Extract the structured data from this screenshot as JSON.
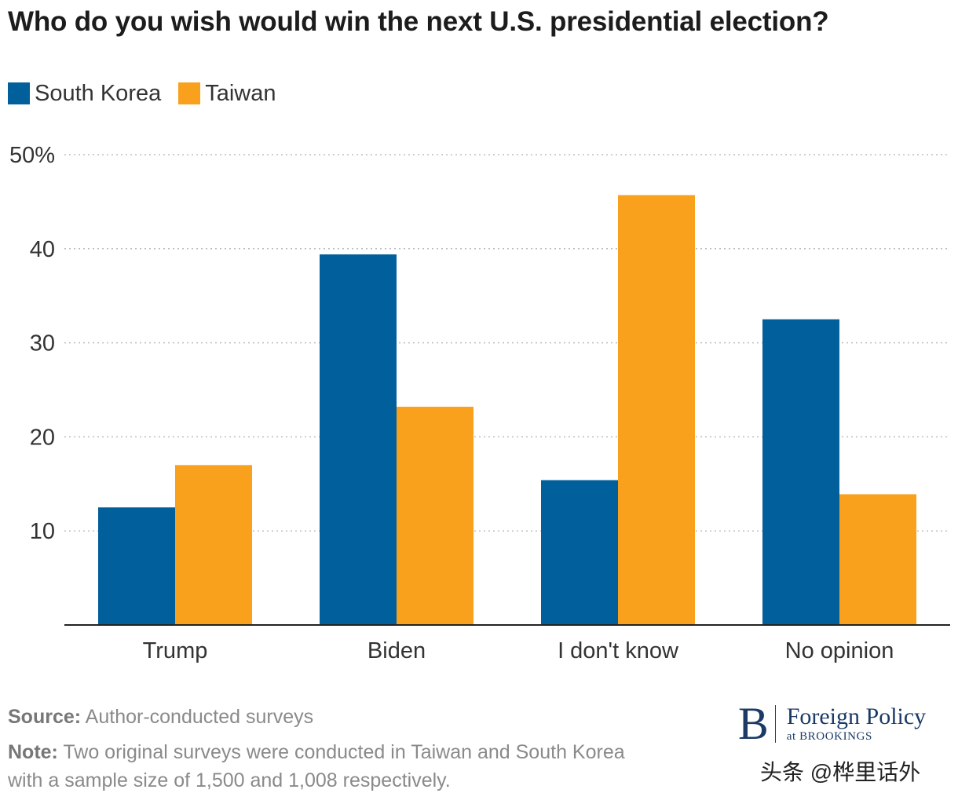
{
  "colors": {
    "south_korea": "#01609c",
    "taiwan": "#f9a01c",
    "grid": "#bdbdbd",
    "axis": "#222222"
  },
  "chart_data": {
    "type": "bar",
    "title": "Who do you wish would win the next U.S. presidential election?",
    "categories": [
      "Trump",
      "Biden",
      "I don't know",
      "No opinion"
    ],
    "series": [
      {
        "name": "South Korea",
        "values": [
          12.5,
          39.4,
          15.4,
          32.5
        ]
      },
      {
        "name": "Taiwan",
        "values": [
          17.0,
          23.2,
          45.7,
          13.9
        ]
      }
    ],
    "ylim": [
      0,
      50
    ],
    "yticks": [
      10,
      20,
      30,
      40,
      50
    ],
    "ytick_labels": [
      "10",
      "20",
      "30",
      "40",
      "50%"
    ],
    "grid": true,
    "legend": "top-left"
  },
  "footer": {
    "source_lead": "Source:",
    "source_text": "Author-conducted surveys",
    "note_lead": "Note:",
    "note_text": "Two original surveys were conducted in Taiwan and South Korea with a sample size of 1,500 and 1,008 respectively."
  },
  "brand": {
    "mark": "B",
    "name": "Foreign Policy",
    "sub": "at BROOKINGS"
  },
  "watermark": "头条 @桦里话外"
}
